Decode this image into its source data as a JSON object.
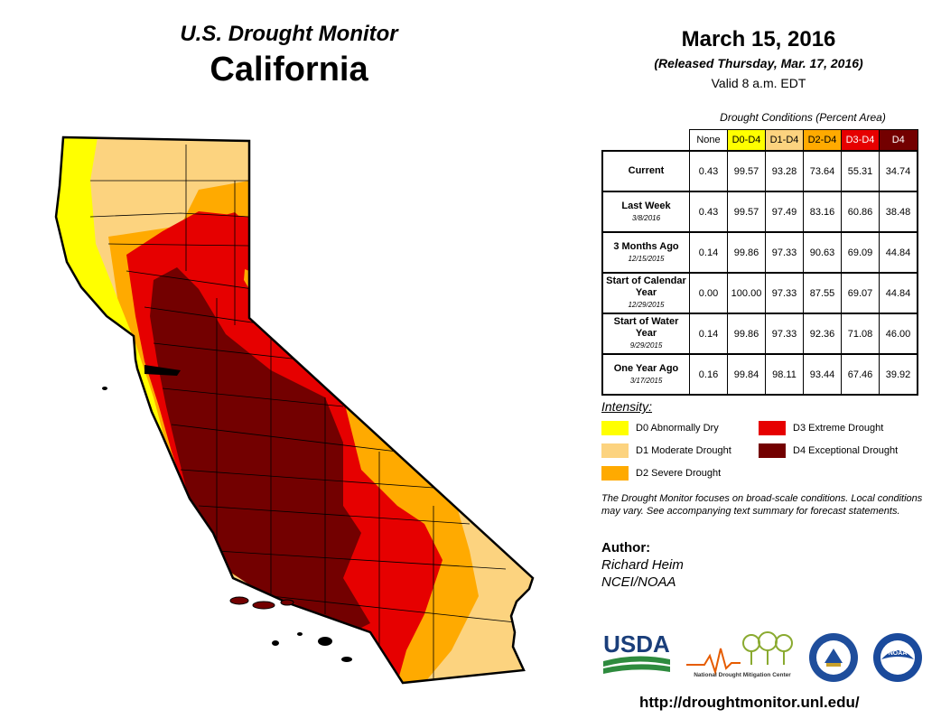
{
  "header": {
    "brand": "U.S. Drought Monitor",
    "state": "California",
    "date": "March 15, 2016",
    "released": "(Released Thursday, Mar. 17, 2016)",
    "valid": "Valid 8 a.m. EDT"
  },
  "table": {
    "caption": "Drought Conditions (Percent Area)",
    "columns": [
      "None",
      "D0-D4",
      "D1-D4",
      "D2-D4",
      "D3-D4",
      "D4"
    ],
    "column_colors": [
      "#ffffff",
      "#ffff00",
      "#fcd37f",
      "#ffaa00",
      "#e60000",
      "#730000"
    ],
    "rows": [
      {
        "label": "Current",
        "date": "",
        "values": [
          "0.43",
          "99.57",
          "93.28",
          "73.64",
          "55.31",
          "34.74"
        ]
      },
      {
        "label": "Last Week",
        "date": "3/8/2016",
        "values": [
          "0.43",
          "99.57",
          "97.49",
          "83.16",
          "60.86",
          "38.48"
        ]
      },
      {
        "label": "3 Months Ago",
        "date": "12/15/2015",
        "values": [
          "0.14",
          "99.86",
          "97.33",
          "90.63",
          "69.09",
          "44.84"
        ]
      },
      {
        "label": "Start of Calendar Year",
        "date": "12/29/2015",
        "values": [
          "0.00",
          "100.00",
          "97.33",
          "87.55",
          "69.07",
          "44.84"
        ]
      },
      {
        "label": "Start of Water Year",
        "date": "9/29/2015",
        "values": [
          "0.14",
          "99.86",
          "97.33",
          "92.36",
          "71.08",
          "46.00"
        ]
      },
      {
        "label": "One Year Ago",
        "date": "3/17/2015",
        "values": [
          "0.16",
          "99.84",
          "98.11",
          "93.44",
          "67.46",
          "39.92"
        ]
      }
    ]
  },
  "legend": {
    "title": "Intensity:",
    "items": [
      {
        "label": "D0 Abnormally Dry",
        "color": "#ffff00"
      },
      {
        "label": "D1 Moderate Drought",
        "color": "#fcd37f"
      },
      {
        "label": "D2 Severe Drought",
        "color": "#ffaa00"
      },
      {
        "label": "D3 Extreme Drought",
        "color": "#e60000"
      },
      {
        "label": "D4 Exceptional Drought",
        "color": "#730000"
      }
    ]
  },
  "disclaimer": "The Drought Monitor focuses on broad-scale conditions. Local conditions may vary. See accompanying text summary for forecast statements.",
  "author": {
    "label": "Author:",
    "name": "Richard Heim",
    "org": "NCEI/NOAA"
  },
  "logos": {
    "usda": "USDA",
    "ndmc": "National Drought Mitigation Center",
    "noaa": "NOAA"
  },
  "url": "http://droughtmonitor.unl.edu/",
  "map": {
    "region": "California",
    "drought_levels": [
      "none",
      "D0",
      "D1",
      "D2",
      "D3",
      "D4"
    ]
  }
}
